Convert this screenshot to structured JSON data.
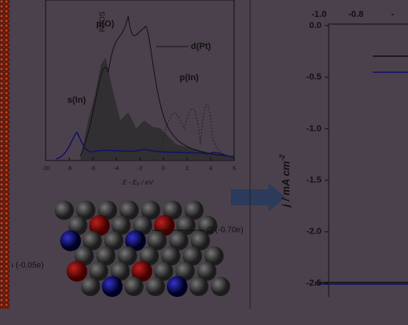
{
  "dos_plot": {
    "y_label": "PDOS",
    "x_label": "E - E",
    "x_label_sub": "F",
    "x_label_unit": " / eV",
    "x_ticks": [
      "-10",
      "-8",
      "-6",
      "-4",
      "-2",
      "0",
      "2",
      "4",
      "6"
    ],
    "annotations": [
      "p(O)",
      "d(Pt)",
      "s(In)",
      "p(In)"
    ]
  },
  "structure": {
    "labels": [
      "O (-0.70e)",
      "ı (-0.05e)"
    ]
  },
  "jv_plot": {
    "y_label": "j / mA cm",
    "y_label_sup": "-2",
    "x_ticks": [
      "-1.0",
      "-0.8",
      "-"
    ],
    "y_ticks": [
      "0.0",
      "-0.5",
      "-1.0",
      "-1.5",
      "-2.0",
      "-2.5"
    ]
  }
}
